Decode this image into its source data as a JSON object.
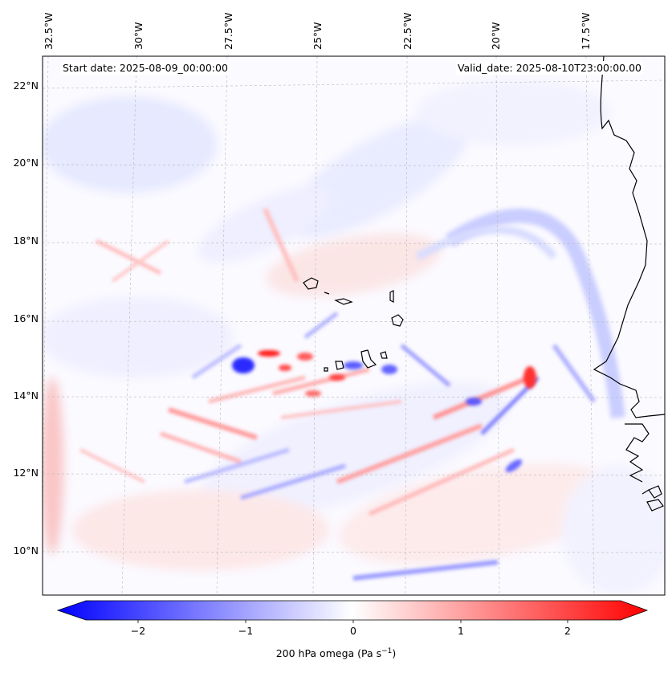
{
  "info": {
    "start_date": "Start date: 2025-08-09_00:00:00",
    "valid_date": "Valid_date: 2025-08-10T23:00:00.00"
  },
  "axes": {
    "lon_ticks": [
      "32.5°W",
      "30°W",
      "27.5°W",
      "25°W",
      "22.5°W",
      "20°W",
      "17.5°W"
    ],
    "lat_ticks": [
      "22°N",
      "20°N",
      "18°N",
      "16°N",
      "14°N",
      "12°N",
      "10°N"
    ]
  },
  "colorbar": {
    "ticks": [
      "−2",
      "−1",
      "0",
      "1",
      "2"
    ],
    "label_prefix": "200 hPa omega (Pa s",
    "label_exp": "−1",
    "label_suffix": ")",
    "min": -2.7,
    "max": 2.7,
    "negative_color": "#0000ff",
    "zero_color": "#ffffff",
    "positive_color": "#ff0000"
  },
  "colors": {
    "coastline": "#000000",
    "gridline": "#b0b0b0"
  }
}
